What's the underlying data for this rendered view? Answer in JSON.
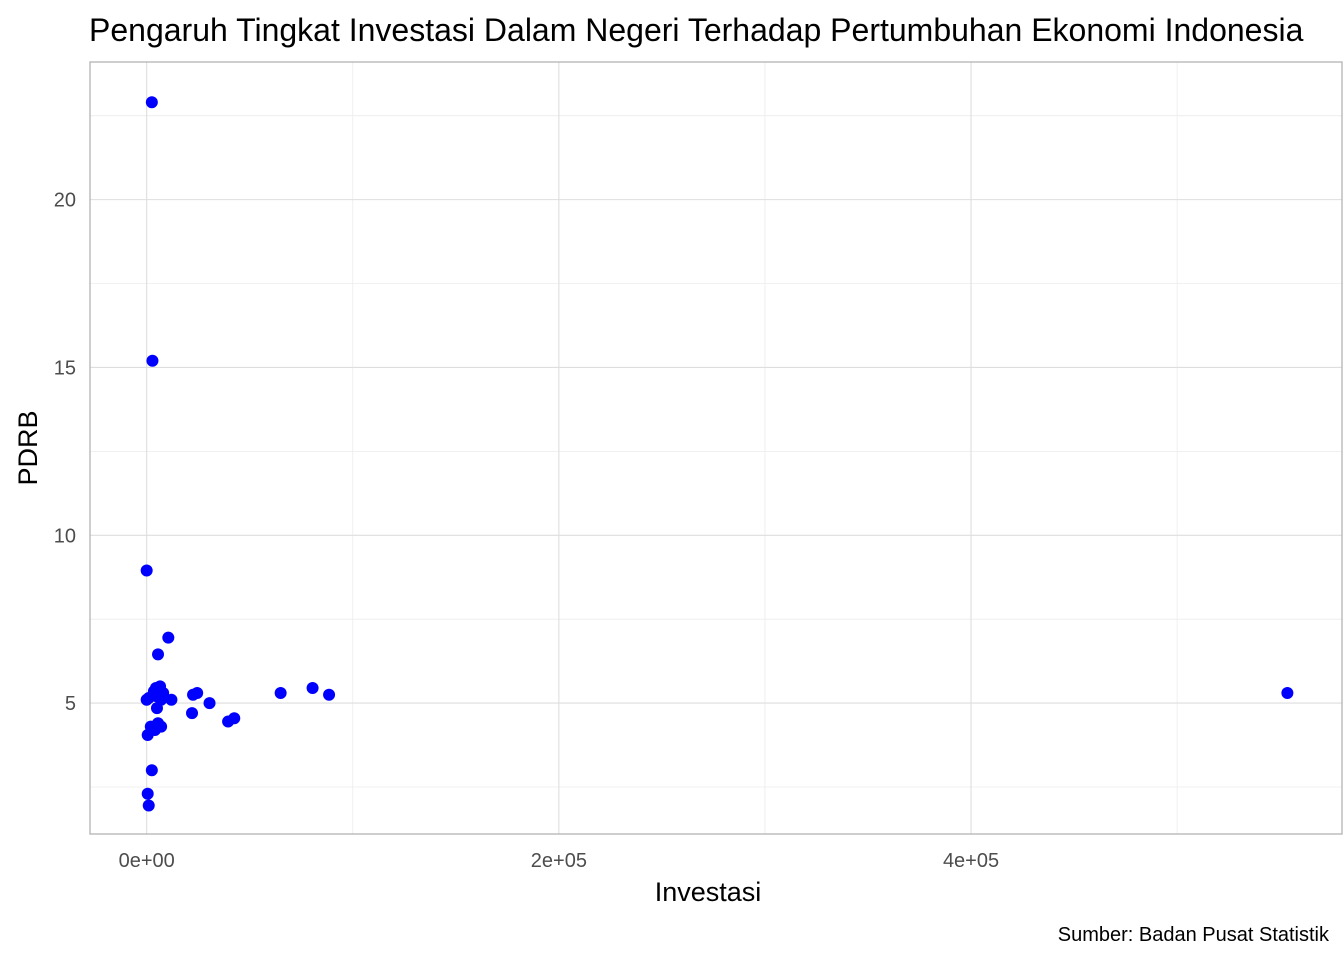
{
  "chart_data": {
    "type": "scatter",
    "title": "Pengaruh Tingkat Investasi Dalam Negeri Terhadap Pertumbuhan Ekonomi Indonesia",
    "xlabel": "Investasi",
    "ylabel": "PDRB",
    "caption": "Sumber: Badan Pusat Statistik",
    "xlim": [
      -27500,
      580000
    ],
    "ylim": [
      1.1,
      24.1
    ],
    "x_ticks": [
      0,
      200000,
      400000
    ],
    "x_tick_labels": [
      "0e+00",
      "2e+05",
      "4e+05"
    ],
    "y_ticks": [
      5,
      10,
      15,
      20
    ],
    "y_tick_labels": [
      "5",
      "10",
      "15",
      "20"
    ],
    "grid": true,
    "legend": "none",
    "point_color": "#0000ff",
    "points": [
      {
        "x": 2500,
        "y": 22.9
      },
      {
        "x": 2800,
        "y": 15.2
      },
      {
        "x": 0,
        "y": 8.95
      },
      {
        "x": 10500,
        "y": 6.95
      },
      {
        "x": 5500,
        "y": 6.45
      },
      {
        "x": 6500,
        "y": 5.5
      },
      {
        "x": 3500,
        "y": 5.35
      },
      {
        "x": 4500,
        "y": 5.45
      },
      {
        "x": 8000,
        "y": 5.3
      },
      {
        "x": 1000,
        "y": 5.15
      },
      {
        "x": 0,
        "y": 5.1
      },
      {
        "x": 12000,
        "y": 5.1
      },
      {
        "x": 5000,
        "y": 5.2
      },
      {
        "x": 7000,
        "y": 5.1
      },
      {
        "x": 5000,
        "y": 4.85
      },
      {
        "x": 5500,
        "y": 4.4
      },
      {
        "x": 7000,
        "y": 4.3
      },
      {
        "x": 2000,
        "y": 4.3
      },
      {
        "x": 4000,
        "y": 4.2
      },
      {
        "x": 500,
        "y": 4.05
      },
      {
        "x": 2500,
        "y": 3.0
      },
      {
        "x": 500,
        "y": 2.3
      },
      {
        "x": 1000,
        "y": 1.95
      },
      {
        "x": 22000,
        "y": 4.7
      },
      {
        "x": 22500,
        "y": 5.25
      },
      {
        "x": 24500,
        "y": 5.3
      },
      {
        "x": 30500,
        "y": 5.0
      },
      {
        "x": 39500,
        "y": 4.45
      },
      {
        "x": 42500,
        "y": 4.55
      },
      {
        "x": 65000,
        "y": 5.3
      },
      {
        "x": 80500,
        "y": 5.45
      },
      {
        "x": 88500,
        "y": 5.25
      },
      {
        "x": 553500,
        "y": 5.3
      }
    ]
  }
}
